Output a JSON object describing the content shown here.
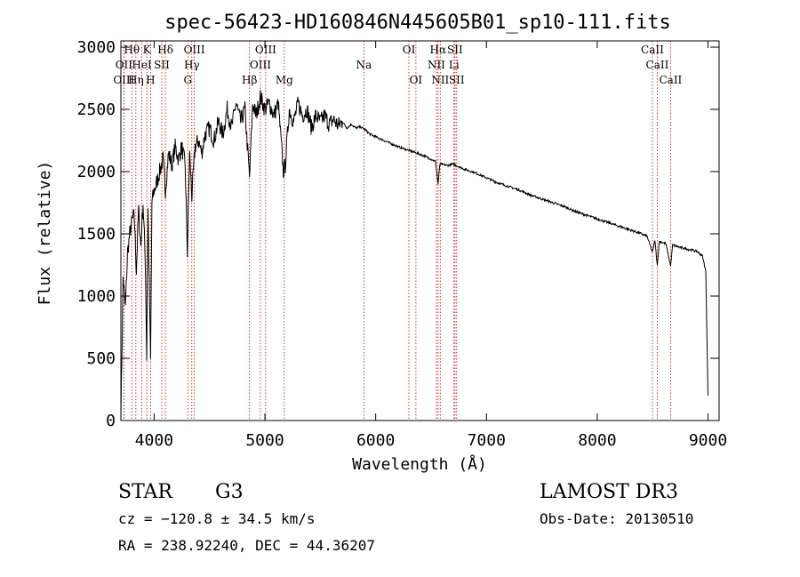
{
  "chart_data": {
    "type": "line",
    "title": "spec-56423-HD160846N445605B01_sp10-111.fits",
    "xlabel": "Wavelength (Å)",
    "ylabel": "Flux (relative)",
    "xlim": [
      3700,
      9100
    ],
    "ylim": [
      0,
      3050
    ],
    "x_ticks": [
      4000,
      5000,
      6000,
      7000,
      8000,
      9000
    ],
    "y_ticks": [
      0,
      500,
      1000,
      1500,
      2000,
      2500,
      3000
    ],
    "x_tick_labels": [
      "4000",
      "5000",
      "6000",
      "7000",
      "8000",
      "9000"
    ],
    "y_tick_labels": [
      "0",
      "500",
      "1000",
      "1500",
      "2000",
      "2500",
      "3000"
    ],
    "series": [
      {
        "name": "flux",
        "color": "#000000",
        "points": [
          [
            3700,
            30
          ],
          [
            3720,
            1150
          ],
          [
            3740,
            900
          ],
          [
            3760,
            1350
          ],
          [
            3780,
            1500
          ],
          [
            3800,
            1600
          ],
          [
            3820,
            1650
          ],
          [
            3840,
            1200
          ],
          [
            3860,
            1700
          ],
          [
            3880,
            1400
          ],
          [
            3900,
            1750
          ],
          [
            3920,
            1300
          ],
          [
            3933,
            500
          ],
          [
            3945,
            1700
          ],
          [
            3968,
            480
          ],
          [
            3980,
            1750
          ],
          [
            4000,
            1850
          ],
          [
            4020,
            1900
          ],
          [
            4050,
            2000
          ],
          [
            4080,
            2100
          ],
          [
            4102,
            1850
          ],
          [
            4130,
            2150
          ],
          [
            4160,
            2050
          ],
          [
            4190,
            2200
          ],
          [
            4220,
            2100
          ],
          [
            4250,
            2200
          ],
          [
            4280,
            2050
          ],
          [
            4300,
            1350
          ],
          [
            4320,
            2150
          ],
          [
            4340,
            1800
          ],
          [
            4370,
            2200
          ],
          [
            4400,
            2250
          ],
          [
            4430,
            2150
          ],
          [
            4460,
            2300
          ],
          [
            4500,
            2350
          ],
          [
            4540,
            2250
          ],
          [
            4580,
            2400
          ],
          [
            4620,
            2300
          ],
          [
            4660,
            2500
          ],
          [
            4700,
            2350
          ],
          [
            4740,
            2550
          ],
          [
            4780,
            2400
          ],
          [
            4820,
            2500
          ],
          [
            4861,
            1950
          ],
          [
            4890,
            2550
          ],
          [
            4920,
            2450
          ],
          [
            4960,
            2600
          ],
          [
            5000,
            2500
          ],
          [
            5040,
            2550
          ],
          [
            5080,
            2450
          ],
          [
            5120,
            2550
          ],
          [
            5167,
            2000
          ],
          [
            5184,
            2050
          ],
          [
            5220,
            2500
          ],
          [
            5260,
            2400
          ],
          [
            5300,
            2550
          ],
          [
            5340,
            2450
          ],
          [
            5380,
            2500
          ],
          [
            5420,
            2350
          ],
          [
            5460,
            2450
          ],
          [
            5500,
            2400
          ],
          [
            5540,
            2450
          ],
          [
            5580,
            2380
          ],
          [
            5620,
            2420
          ],
          [
            5660,
            2370
          ],
          [
            5700,
            2400
          ],
          [
            5740,
            2350
          ],
          [
            5780,
            2380
          ],
          [
            5820,
            2350
          ],
          [
            5860,
            2360
          ],
          [
            5900,
            2340
          ],
          [
            5950,
            2300
          ],
          [
            6000,
            2280
          ],
          [
            6100,
            2240
          ],
          [
            6200,
            2200
          ],
          [
            6300,
            2170
          ],
          [
            6400,
            2140
          ],
          [
            6500,
            2100
          ],
          [
            6540,
            2080
          ],
          [
            6563,
            1900
          ],
          [
            6580,
            2060
          ],
          [
            6650,
            2050
          ],
          [
            6700,
            2060
          ],
          [
            6800,
            2020
          ],
          [
            6900,
            1990
          ],
          [
            7000,
            1950
          ],
          [
            7100,
            1910
          ],
          [
            7200,
            1880
          ],
          [
            7300,
            1850
          ],
          [
            7400,
            1810
          ],
          [
            7500,
            1780
          ],
          [
            7600,
            1750
          ],
          [
            7700,
            1720
          ],
          [
            7800,
            1680
          ],
          [
            7900,
            1650
          ],
          [
            8000,
            1620
          ],
          [
            8100,
            1590
          ],
          [
            8200,
            1560
          ],
          [
            8300,
            1530
          ],
          [
            8400,
            1500
          ],
          [
            8450,
            1480
          ],
          [
            8498,
            1350
          ],
          [
            8520,
            1450
          ],
          [
            8542,
            1250
          ],
          [
            8560,
            1440
          ],
          [
            8620,
            1420
          ],
          [
            8662,
            1240
          ],
          [
            8680,
            1410
          ],
          [
            8750,
            1390
          ],
          [
            8800,
            1380
          ],
          [
            8850,
            1370
          ],
          [
            8900,
            1360
          ],
          [
            8950,
            1320
          ],
          [
            8980,
            1200
          ],
          [
            9000,
            200
          ]
        ]
      }
    ],
    "spectral_lines": [
      {
        "label": "Hθ",
        "x": 3798,
        "row": 0
      },
      {
        "label": "K",
        "x": 3934,
        "row": 0
      },
      {
        "label": "Hδ",
        "x": 4102,
        "row": 0
      },
      {
        "label": "OIII",
        "x": 4363,
        "row": 0
      },
      {
        "label": "OIII",
        "x": 5007,
        "row": 0
      },
      {
        "label": "OI",
        "x": 6300,
        "row": 0
      },
      {
        "label": "Hα",
        "x": 6563,
        "row": 0
      },
      {
        "label": "SII",
        "x": 6716,
        "row": 0
      },
      {
        "label": "CaII",
        "x": 8498,
        "row": 0
      },
      {
        "label": "OII",
        "x": 3727,
        "row": 1
      },
      {
        "label": "HeI",
        "x": 3889,
        "row": 1
      },
      {
        "label": "SII",
        "x": 4069,
        "row": 1
      },
      {
        "label": "Hγ",
        "x": 4340,
        "row": 1
      },
      {
        "label": "OIII",
        "x": 4959,
        "row": 1
      },
      {
        "label": "Na",
        "x": 5893,
        "row": 1
      },
      {
        "label": "NII",
        "x": 6548,
        "row": 1
      },
      {
        "label": "Li",
        "x": 6707,
        "row": 1
      },
      {
        "label": "CaII",
        "x": 8542,
        "row": 1
      },
      {
        "label": "OIII",
        "x": 3727,
        "row": 2
      },
      {
        "label": "Hη",
        "x": 3835,
        "row": 2
      },
      {
        "label": "H",
        "x": 3968,
        "row": 2
      },
      {
        "label": "G",
        "x": 4304,
        "row": 2
      },
      {
        "label": "Hβ",
        "x": 4861,
        "row": 2
      },
      {
        "label": "Mg",
        "x": 5175,
        "row": 2
      },
      {
        "label": "OI",
        "x": 6363,
        "row": 2
      },
      {
        "label": "NII",
        "x": 6583,
        "row": 2
      },
      {
        "label": "SII",
        "x": 6731,
        "row": 2
      },
      {
        "label": "CaII",
        "x": 8662,
        "row": 2
      }
    ],
    "line_marker_color": "#cc0000"
  },
  "info": {
    "object_class": "STAR",
    "subclass": "G3",
    "survey": "LAMOST DR3",
    "redshift": "cz = −120.8 ± 34.5 km/s",
    "obs_date": "Obs-Date: 20130510",
    "coords": "RA = 238.92240, DEC =  44.36207"
  }
}
